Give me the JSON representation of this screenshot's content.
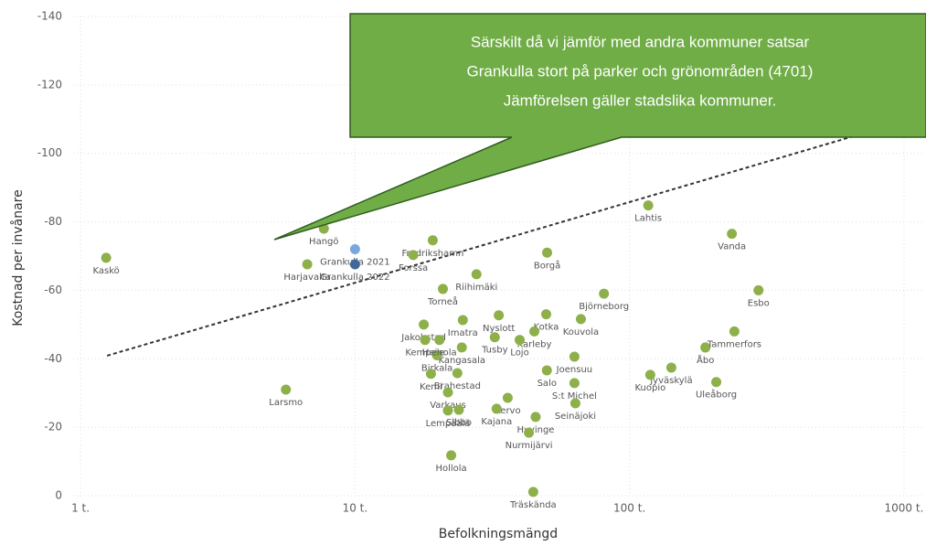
{
  "chart_data": {
    "type": "scatter",
    "x_label": "Befolkningsmängd",
    "y_label": "Kostnad per invånare",
    "xlog": true,
    "grid": true,
    "xlim": [
      0.94,
      1175
    ],
    "xticks": [
      {
        "value": 1,
        "label": "1 t."
      },
      {
        "value": 10,
        "label": "10 t."
      },
      {
        "value": 100,
        "label": "100 t."
      },
      {
        "value": 1000,
        "label": "1000 t."
      }
    ],
    "ylim": [
      0,
      -140
    ],
    "yticks": [
      0,
      -20,
      -40,
      -60,
      -80,
      -100,
      -120,
      -140
    ],
    "color": "#8db04a",
    "labels": [
      "Kaskö",
      "Hangö",
      "Grankulla 2021",
      "Grankulla 2022",
      "Harjavalta",
      "Fredrikshamn",
      "Forssa",
      "Borgå",
      "Riihimäki",
      "Torneå",
      "Jakobstad",
      "Nyslott",
      "Kotka",
      "Björneborg",
      "Esbo",
      "Lahtis",
      "Vanda",
      "Heinola",
      "Imatra",
      "Karleby",
      "Tusby",
      "Lojo",
      "Kouvola",
      "Kangasala",
      "Birkala",
      "Kempele",
      "Joensuu",
      "Jyväskylä",
      "Åbo",
      "Tammerfors",
      "Kuopio",
      "Uleåborg",
      "Salo",
      "S:t Michel",
      "Seinäjoki",
      "Kemi",
      "Brahestad",
      "Varkaus",
      "Kervo",
      "Sibbo",
      "Kajana",
      "Hyvinge",
      "Lempäälä",
      "Nurmijärvi",
      "Hollola",
      "Träskända",
      "Larsmo"
    ],
    "x": [
      1.24,
      7.7,
      10,
      10,
      6.7,
      19.2,
      16.3,
      50.1,
      27.7,
      20.9,
      17.8,
      33.4,
      49.7,
      80.7,
      295,
      117,
      236,
      20.3,
      24.7,
      45,
      32.3,
      39.8,
      66.5,
      24.5,
      19.9,
      18,
      63,
      142,
      189,
      241,
      119,
      207,
      50,
      63,
      63.5,
      18.9,
      23.6,
      21.8,
      36,
      23.9,
      32.8,
      45.5,
      21.8,
      43,
      22.4,
      44.6,
      5.6
    ],
    "y": [
      -69.5,
      -78,
      -72,
      -67.6,
      -67.6,
      -74.6,
      -70.3,
      -71,
      -64.7,
      -60.4,
      -50,
      -52.7,
      -53,
      -59,
      -60,
      -84.8,
      -76.5,
      -45.5,
      -51.3,
      -48,
      -46.3,
      -45.5,
      -51.6,
      -43.3,
      -41,
      -45.5,
      -40.6,
      -37.4,
      -43.3,
      -48,
      -35.3,
      -33.2,
      -36.6,
      -32.9,
      -27,
      -35.6,
      -35.8,
      -30.2,
      -28.6,
      -25.1,
      -25.4,
      -23,
      -24.9,
      -18.4,
      -11.8,
      -1.1,
      -31
    ],
    "point_colors": {
      "2": "#7ba7e0",
      "3": "#41679b"
    },
    "trend": {
      "x": [
        1.25,
        641
      ],
      "y": [
        -40.9,
        -104.8
      ]
    },
    "annotation": [
      "Särskilt då vi jämför med andra kommuner satsar",
      "Grankulla stort på parker och grönområden (4701)",
      "Jämförelsen gäller stadslika kommuner."
    ]
  }
}
